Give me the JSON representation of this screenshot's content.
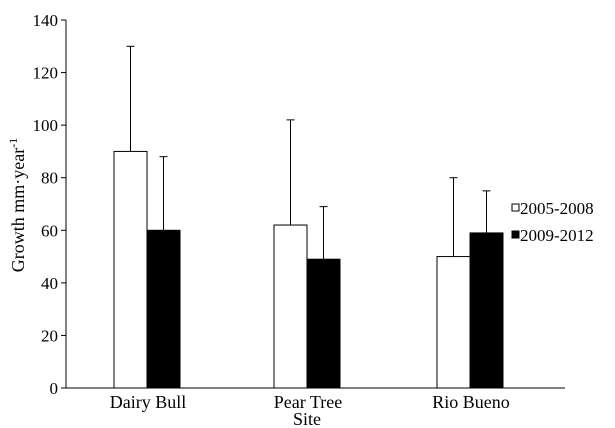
{
  "chart_data": {
    "type": "bar",
    "title": "",
    "xlabel": "Site",
    "ylabel_main": "Growth mm·year",
    "ylabel_sup": "-1",
    "categories": [
      "Dairy Bull",
      "Pear Tree",
      "Rio Bueno"
    ],
    "ylim": [
      0,
      140
    ],
    "yticks": [
      0,
      20,
      40,
      60,
      80,
      100,
      120,
      140
    ],
    "grid": false,
    "legend_position": "right",
    "series": [
      {
        "name": "2005-2008",
        "values": [
          90,
          62,
          50
        ],
        "errors": [
          40,
          40,
          30
        ],
        "fill": "#ffffff",
        "stroke": "#000000"
      },
      {
        "name": "2009-2012",
        "values": [
          60,
          49,
          59
        ],
        "errors": [
          28,
          20,
          16
        ],
        "fill": "#000000",
        "stroke": "#000000"
      }
    ]
  }
}
